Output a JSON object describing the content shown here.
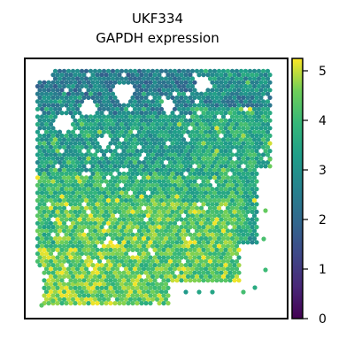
{
  "chart_data": {
    "type": "scatter",
    "title_line1": "UKF334",
    "title_line2": "GAPDH expression",
    "xlabel": "",
    "ylabel": "",
    "colormap": "viridis",
    "color_range": [
      0,
      5.25
    ],
    "colorbar_ticks": [
      "0",
      "1",
      "2",
      "3",
      "4",
      "5"
    ],
    "colorbar_tick_values": [
      0,
      1,
      2,
      3,
      4,
      5
    ],
    "grid": false,
    "marker": "hexagon",
    "description_regions": [
      {
        "region": "top band",
        "typical_value": 2.6
      },
      {
        "region": "upper-right block",
        "typical_value": 3.4
      },
      {
        "region": "middle-left",
        "typical_value": 3.8
      },
      {
        "region": "lower-middle",
        "typical_value": 4.3
      },
      {
        "region": "bottom-left",
        "typical_value": 4.6
      }
    ]
  }
}
